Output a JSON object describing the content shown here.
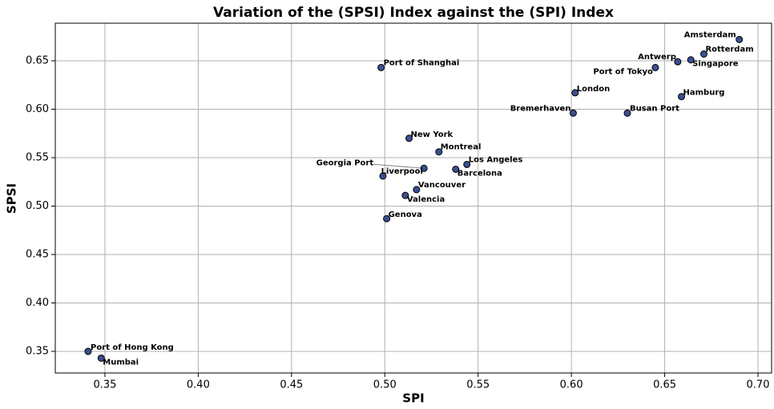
{
  "chart_data": {
    "type": "scatter",
    "title": "Variation of the (SPSI) Index against the (SPI) Index",
    "xlabel": "SPI",
    "ylabel": "SPSI",
    "color": "#3b4f91",
    "edgecolor": "#000000",
    "grid": true,
    "xlim": [
      0.3234,
      0.7073
    ],
    "ylim": [
      0.3277,
      0.6888
    ],
    "xticks": [
      0.35,
      {
        "value": 0.4,
        "label": "0.40"
      },
      0.45,
      {
        "value": 0.5,
        "label": "0.50"
      },
      0.55,
      {
        "value": 0.6,
        "label": "0.60"
      },
      0.65,
      {
        "value": 0.7,
        "label": "0.70"
      }
    ],
    "yticks": [
      0.35,
      {
        "value": 0.4,
        "label": "0.40"
      },
      0.45,
      {
        "value": 0.5,
        "label": "0.50"
      },
      0.55,
      {
        "value": 0.6,
        "label": "0.60"
      },
      0.65
    ],
    "labels": [
      "Amsterdam",
      "Rotterdam",
      "Singapore",
      "Antwerp",
      "Port of Tokyo",
      "Hamburg",
      "London",
      "Bremerhaven",
      "Busan Port",
      "Port of Shanghai",
      "New York",
      "Montreal",
      "Los Angeles",
      "Georgia Port",
      "Barcelona",
      "Liverpool",
      "Vancouver",
      "Valencia",
      "Genova",
      "Port of Hong Kong",
      "Mumbai"
    ],
    "x": [
      0.69,
      0.671,
      0.664,
      0.657,
      0.645,
      0.659,
      0.602,
      0.601,
      0.63,
      0.498,
      0.513,
      0.529,
      0.544,
      0.521,
      0.538,
      0.499,
      0.517,
      0.511,
      0.501,
      0.341,
      0.348
    ],
    "values": [
      0.672,
      0.657,
      0.651,
      0.649,
      0.643,
      0.613,
      0.617,
      0.596,
      0.596,
      0.643,
      0.57,
      0.556,
      0.543,
      0.539,
      0.538,
      0.531,
      0.517,
      0.511,
      0.487,
      0.35,
      0.343
    ]
  }
}
